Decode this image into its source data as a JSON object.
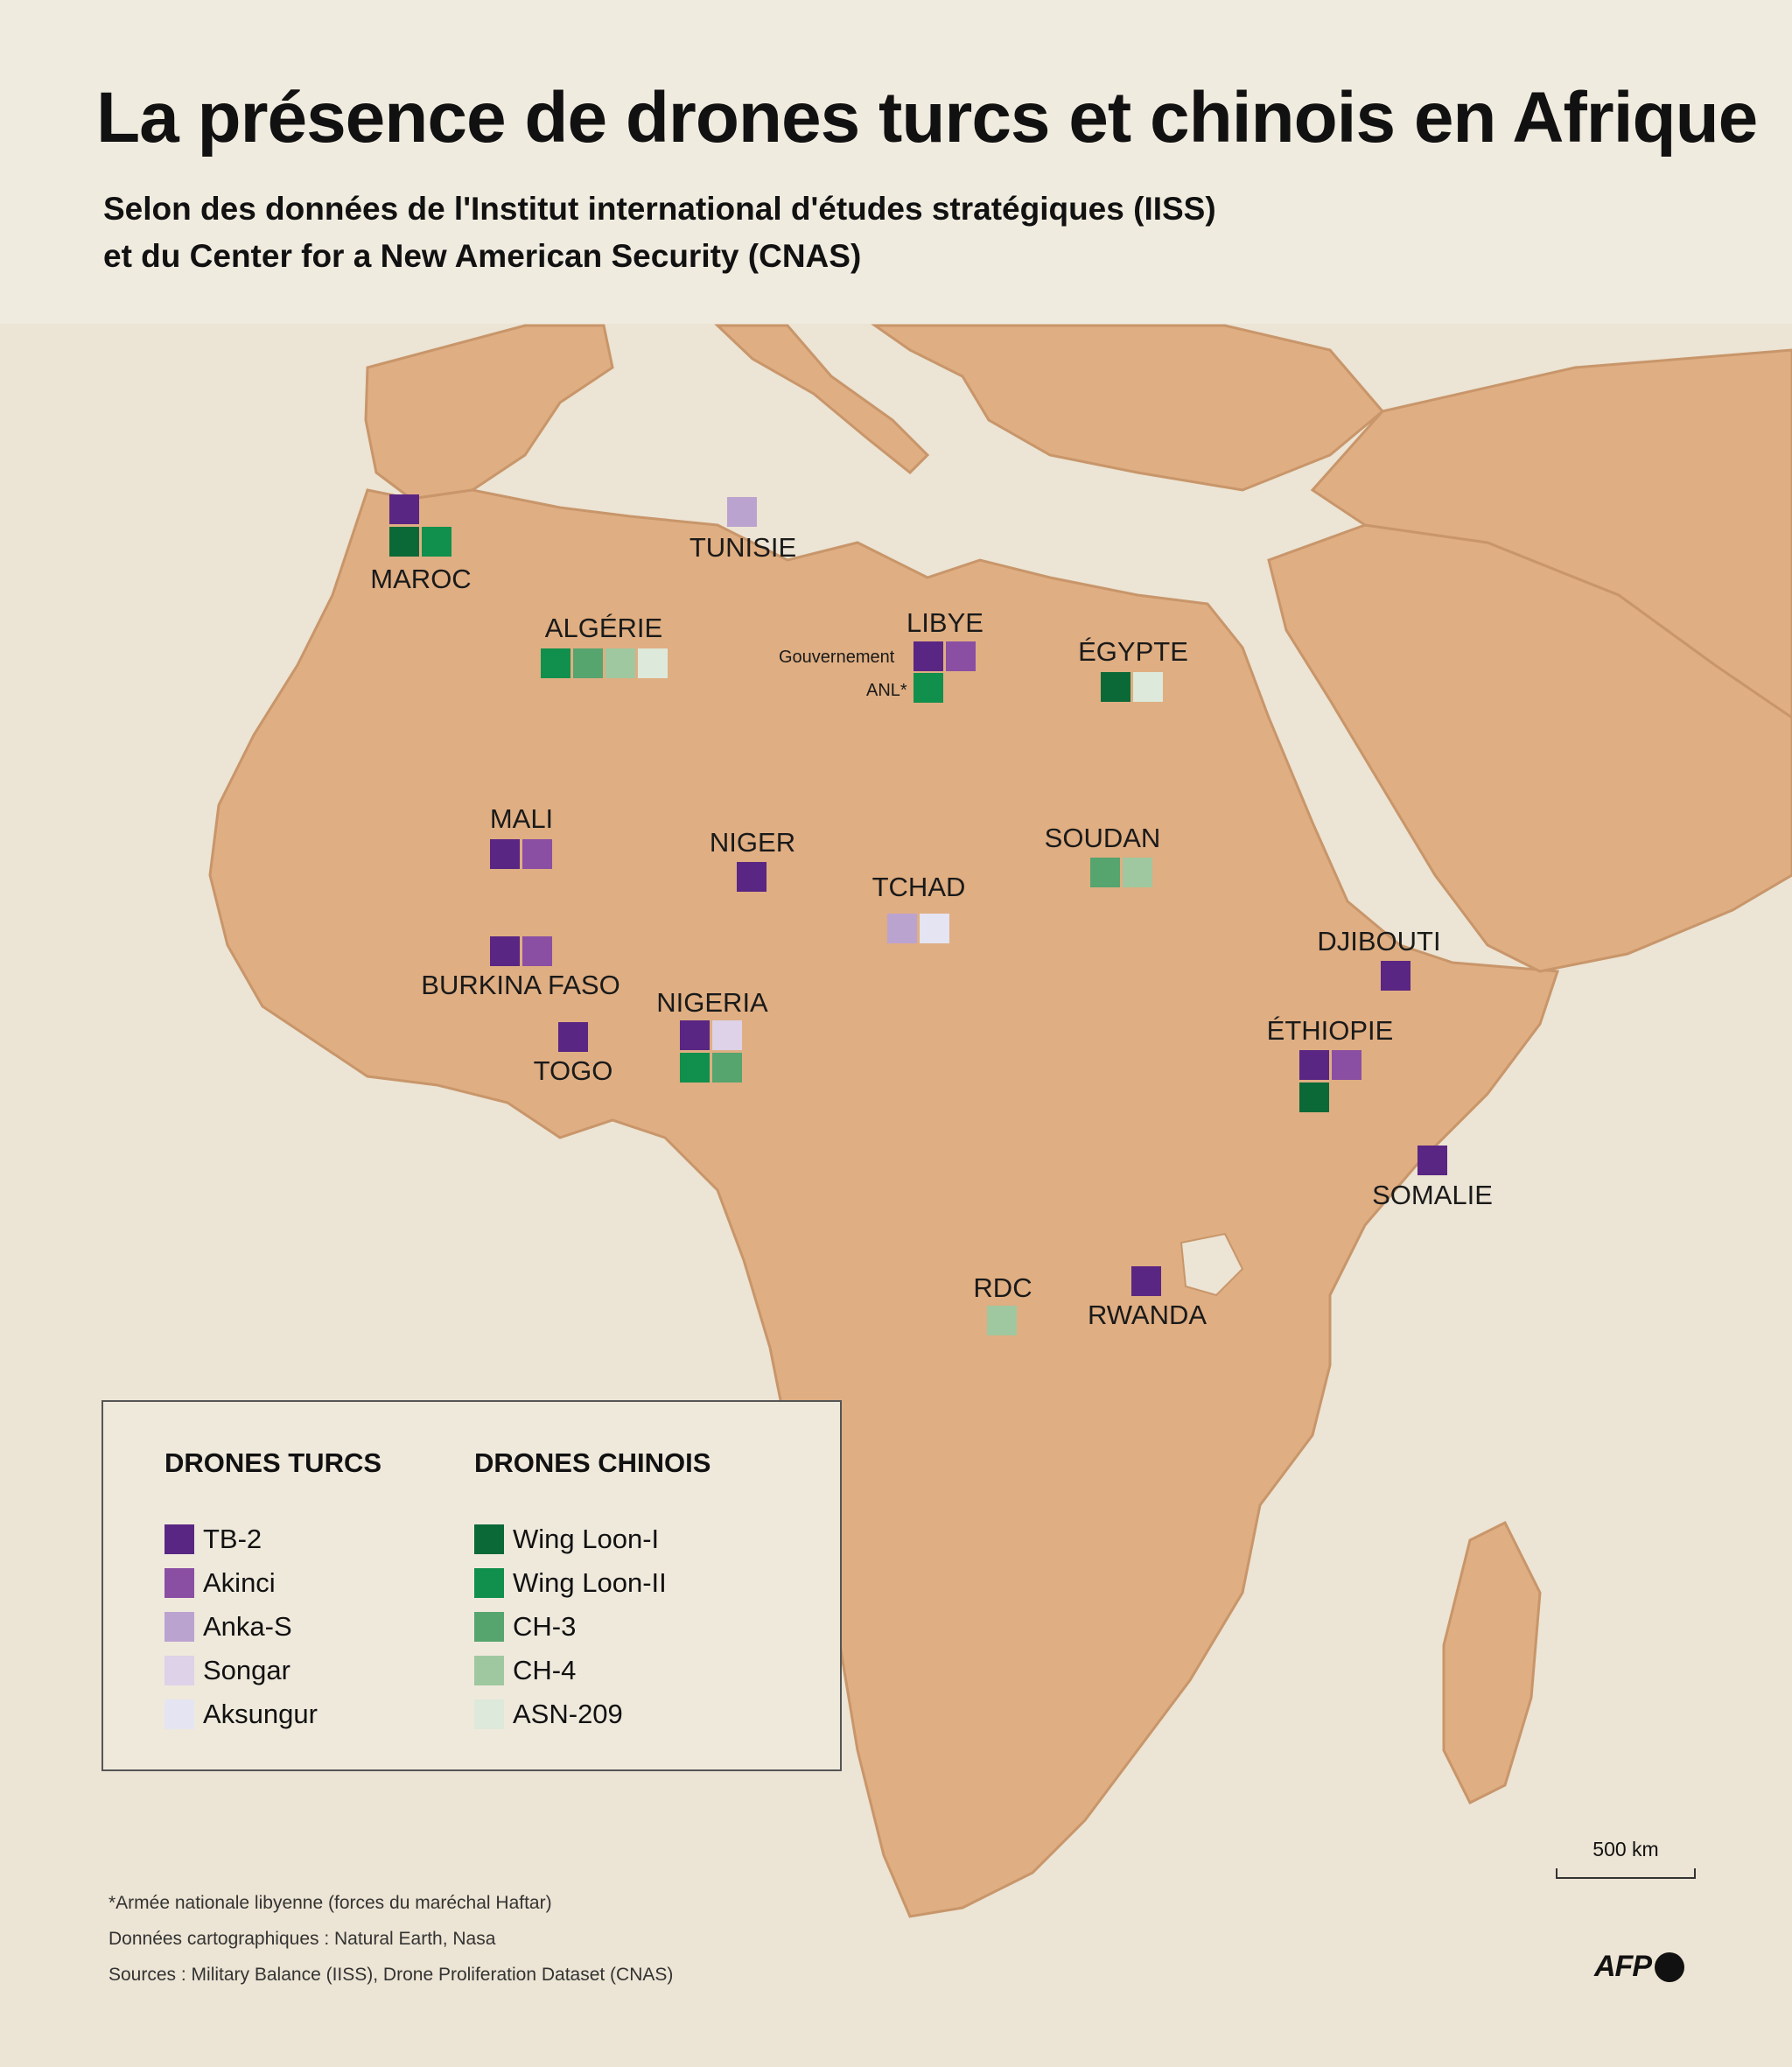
{
  "title": "La présence de drones turcs et chinois en Afrique",
  "subtitle_line1": "Selon des données de l'Institut international d'études stratégiques (IISS)",
  "subtitle_line2": "et du Center for a New American Security (CNAS)",
  "drone_types": {
    "TB-2": "#5a2683",
    "Akinci": "#8a4fa2",
    "Anka-S": "#bba3d0",
    "Songar": "#ddd2e7",
    "Aksungur": "#e4e4f2",
    "Wing Loon-I": "#0b6938",
    "Wing Loon-II": "#10904c",
    "CH-3": "#56a46e",
    "CH-4": "#9fc8a0",
    "ASN-209": "#dde9da"
  },
  "countries": [
    {
      "name": "MAROC",
      "drones": [
        "TB-2",
        "Wing Loon-I",
        "Wing Loon-II"
      ]
    },
    {
      "name": "TUNISIE",
      "drones": [
        "Anka-S"
      ]
    },
    {
      "name": "ALGÉRIE",
      "drones": [
        "Wing Loon-II",
        "CH-3",
        "CH-4",
        "ASN-209"
      ]
    },
    {
      "name": "LIBYE",
      "groups": [
        {
          "label": "Gouvernement",
          "drones": [
            "TB-2",
            "Akinci"
          ]
        },
        {
          "label": "ANL*",
          "drones": [
            "Wing Loon-II"
          ]
        }
      ]
    },
    {
      "name": "ÉGYPTE",
      "drones": [
        "Wing Loon-I",
        "ASN-209"
      ]
    },
    {
      "name": "MALI",
      "drones": [
        "TB-2",
        "Akinci"
      ]
    },
    {
      "name": "NIGER",
      "drones": [
        "TB-2"
      ]
    },
    {
      "name": "SOUDAN",
      "drones": [
        "CH-3",
        "CH-4"
      ]
    },
    {
      "name": "TCHAD",
      "drones": [
        "Anka-S",
        "Aksungur"
      ]
    },
    {
      "name": "BURKINA FASO",
      "drones": [
        "TB-2",
        "Akinci"
      ]
    },
    {
      "name": "NIGERIA",
      "drones": [
        "TB-2",
        "Songar",
        "Wing Loon-II",
        "CH-3"
      ]
    },
    {
      "name": "TOGO",
      "drones": [
        "TB-2"
      ]
    },
    {
      "name": "DJIBOUTI",
      "drones": [
        "TB-2"
      ]
    },
    {
      "name": "ÉTHIOPIE",
      "drones": [
        "TB-2",
        "Akinci",
        "Wing Loon-I"
      ]
    },
    {
      "name": "SOMALIE",
      "drones": [
        "TB-2"
      ]
    },
    {
      "name": "RDC",
      "drones": [
        "CH-4"
      ]
    },
    {
      "name": "RWANDA",
      "drones": [
        "TB-2"
      ]
    }
  ],
  "legend": {
    "turkish_title": "DRONES TURCS",
    "chinese_title": "DRONES CHINOIS",
    "turkish": [
      {
        "label": "TB-2",
        "color": "#5a2683"
      },
      {
        "label": "Akinci",
        "color": "#8a4fa2"
      },
      {
        "label": "Anka-S",
        "color": "#bba3d0"
      },
      {
        "label": "Songar",
        "color": "#ddd2e7"
      },
      {
        "label": "Aksungur",
        "color": "#e4e4f2"
      }
    ],
    "chinese": [
      {
        "label": "Wing Loon-I",
        "color": "#0b6938"
      },
      {
        "label": "Wing Loon-II",
        "color": "#10904c"
      },
      {
        "label": "CH-3",
        "color": "#56a46e"
      },
      {
        "label": "CH-4",
        "color": "#9fc8a0"
      },
      {
        "label": "ASN-209",
        "color": "#dde9da"
      }
    ]
  },
  "scale_label": "500 km",
  "notes": [
    "*Armée nationale libyenne (forces du maréchal Haftar)",
    "Données cartographiques : Natural Earth, Nasa",
    "Sources : Military Balance (IISS), Drone Proliferation Dataset (CNAS)"
  ],
  "logo": "AFP",
  "land_color": "#dfae82",
  "sea_color": "#ece4d4"
}
